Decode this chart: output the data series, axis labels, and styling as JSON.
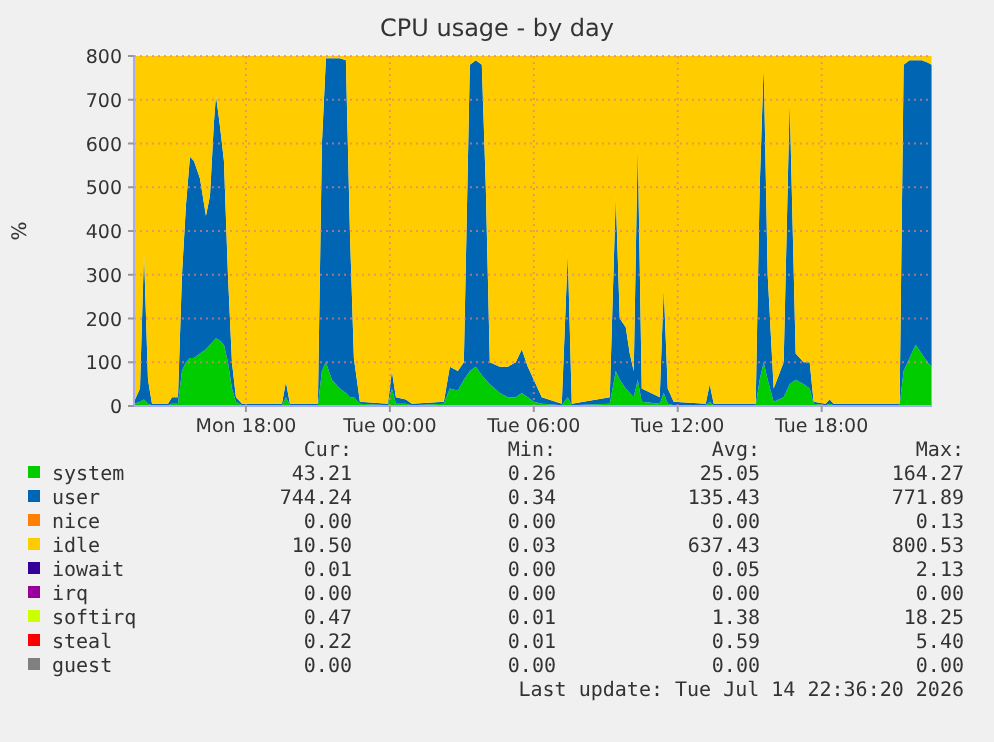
{
  "chart_data": {
    "type": "area",
    "stacked": true,
    "title": "CPU usage - by day",
    "ylabel": "%",
    "grid": true,
    "legend": "bottom",
    "x": [
      "2026-07-13T13:20",
      "2026-07-13T13:35",
      "2026-07-13T13:45",
      "2026-07-13T13:55",
      "2026-07-13T14:05",
      "2026-07-13T14:45",
      "2026-07-13T14:55",
      "2026-07-13T15:10",
      "2026-07-13T15:20",
      "2026-07-13T15:30",
      "2026-07-13T15:40",
      "2026-07-13T15:50",
      "2026-07-13T16:05",
      "2026-07-13T16:20",
      "2026-07-13T16:30",
      "2026-07-13T16:40",
      "2026-07-13T16:45",
      "2026-07-13T16:55",
      "2026-07-13T17:05",
      "2026-07-13T17:15",
      "2026-07-13T17:25",
      "2026-07-13T17:35",
      "2026-07-13T17:50",
      "2026-07-13T19:30",
      "2026-07-13T19:40",
      "2026-07-13T19:50",
      "2026-07-13T21:00",
      "2026-07-13T21:10",
      "2026-07-13T21:20",
      "2026-07-13T21:35",
      "2026-07-13T21:55",
      "2026-07-13T22:10",
      "2026-07-13T22:20",
      "2026-07-13T22:30",
      "2026-07-13T22:45",
      "2026-07-13T23:55",
      "2026-07-14T00:05",
      "2026-07-14T00:15",
      "2026-07-14T00:40",
      "2026-07-14T00:55",
      "2026-07-14T02:15",
      "2026-07-14T02:30",
      "2026-07-14T02:50",
      "2026-07-14T03:05",
      "2026-07-14T03:20",
      "2026-07-14T03:35",
      "2026-07-14T03:50",
      "2026-07-14T04:00",
      "2026-07-14T04:10",
      "2026-07-14T04:35",
      "2026-07-14T04:55",
      "2026-07-14T05:15",
      "2026-07-14T05:30",
      "2026-07-14T05:45",
      "2026-07-14T06:00",
      "2026-07-14T06:20",
      "2026-07-14T07:10",
      "2026-07-14T07:25",
      "2026-07-14T07:35",
      "2026-07-14T09:10",
      "2026-07-14T09:25",
      "2026-07-14T09:35",
      "2026-07-14T09:50",
      "2026-07-14T10:00",
      "2026-07-14T10:10",
      "2026-07-14T10:20",
      "2026-07-14T10:30",
      "2026-07-14T11:15",
      "2026-07-14T11:25",
      "2026-07-14T11:35",
      "2026-07-14T11:50",
      "2026-07-14T13:10",
      "2026-07-14T13:20",
      "2026-07-14T13:30",
      "2026-07-14T15:15",
      "2026-07-14T15:25",
      "2026-07-14T15:35",
      "2026-07-14T15:45",
      "2026-07-14T16:00",
      "2026-07-14T16:25",
      "2026-07-14T16:40",
      "2026-07-14T16:55",
      "2026-07-14T17:15",
      "2026-07-14T17:30",
      "2026-07-14T17:40",
      "2026-07-14T18:10",
      "2026-07-14T18:20",
      "2026-07-14T18:30",
      "2026-07-14T21:15",
      "2026-07-14T21:25",
      "2026-07-14T21:40",
      "2026-07-14T21:55",
      "2026-07-14T22:10",
      "2026-07-14T22:25",
      "2026-07-14T22:35"
    ],
    "xlim": [
      "2026-07-13T13:20",
      "2026-07-14T22:36"
    ],
    "xticks": [
      {
        "value": "2026-07-13T18:00",
        "label": "Mon 18:00"
      },
      {
        "value": "2026-07-14T00:00",
        "label": "Tue 00:00"
      },
      {
        "value": "2026-07-14T06:00",
        "label": "Tue 06:00"
      },
      {
        "value": "2026-07-14T12:00",
        "label": "Tue 12:00"
      },
      {
        "value": "2026-07-14T18:00",
        "label": "Tue 18:00"
      }
    ],
    "ylim": [
      0,
      800
    ],
    "yticks": [
      0,
      100,
      200,
      300,
      400,
      500,
      600,
      700,
      800
    ],
    "series": [
      {
        "name": "system",
        "color": "#00cc00",
        "values": [
          5,
          10,
          15,
          5,
          2,
          2,
          5,
          5,
          80,
          100,
          110,
          110,
          120,
          130,
          140,
          150,
          155,
          150,
          140,
          100,
          40,
          10,
          2,
          2,
          20,
          2,
          2,
          80,
          100,
          60,
          40,
          30,
          20,
          20,
          5,
          2,
          40,
          5,
          5,
          2,
          5,
          40,
          35,
          60,
          80,
          90,
          70,
          60,
          50,
          30,
          20,
          20,
          30,
          20,
          10,
          5,
          2,
          20,
          2,
          5,
          80,
          60,
          40,
          30,
          20,
          60,
          10,
          5,
          30,
          5,
          2,
          2,
          10,
          2,
          2,
          60,
          100,
          60,
          10,
          20,
          50,
          60,
          50,
          40,
          5,
          2,
          5,
          2,
          2,
          80,
          110,
          140,
          120,
          100,
          90
        ]
      },
      {
        "name": "user",
        "color": "#0066b3",
        "values": [
          5,
          30,
          335,
          55,
          3,
          3,
          15,
          15,
          220,
          360,
          460,
          450,
          400,
          305,
          340,
          500,
          555,
          490,
          420,
          200,
          60,
          10,
          3,
          3,
          35,
          3,
          3,
          520,
          695,
          735,
          755,
          760,
          380,
          90,
          5,
          3,
          40,
          15,
          10,
          3,
          5,
          50,
          45,
          40,
          700,
          700,
          710,
          440,
          50,
          60,
          70,
          80,
          100,
          70,
          50,
          15,
          3,
          330,
          3,
          15,
          400,
          140,
          140,
          90,
          60,
          540,
          30,
          15,
          240,
          35,
          8,
          3,
          40,
          3,
          3,
          440,
          680,
          240,
          30,
          80,
          650,
          60,
          50,
          60,
          5,
          3,
          10,
          3,
          3,
          700,
          680,
          650,
          670,
          685,
          690
        ]
      },
      {
        "name": "nice",
        "color": "#ff8000",
        "values": [
          null,
          null,
          null,
          null,
          null,
          null,
          null,
          null,
          null,
          null,
          null,
          null,
          null,
          null,
          null,
          null,
          null,
          null,
          null,
          null,
          null,
          null,
          null,
          null,
          null,
          null,
          null,
          null,
          null,
          null,
          null,
          null,
          null,
          null,
          null,
          null,
          null,
          null,
          null,
          null,
          null,
          null,
          null,
          null,
          null,
          null,
          null,
          null,
          null,
          null,
          null,
          null,
          null,
          null,
          null,
          null,
          null,
          null,
          null,
          null,
          null,
          null,
          null,
          null,
          null,
          null,
          null,
          null,
          null,
          null,
          null,
          null,
          null,
          null,
          null,
          null,
          null,
          null,
          null,
          null,
          null,
          null,
          null,
          null,
          null,
          null,
          null,
          null,
          null,
          null,
          null,
          null,
          null,
          null,
          null
        ]
      },
      {
        "name": "idle",
        "color": "#ffcc00",
        "values": [
          790,
          760,
          450,
          740,
          795,
          795,
          780,
          780,
          500,
          340,
          230,
          240,
          280,
          365,
          320,
          150,
          90,
          160,
          240,
          500,
          700,
          780,
          795,
          795,
          745,
          795,
          795,
          200,
          5,
          5,
          5,
          10,
          400,
          690,
          790,
          795,
          720,
          780,
          785,
          795,
          790,
          710,
          720,
          700,
          20,
          10,
          20,
          300,
          700,
          710,
          710,
          700,
          670,
          710,
          740,
          780,
          795,
          450,
          795,
          780,
          320,
          600,
          620,
          680,
          720,
          200,
          760,
          780,
          530,
          760,
          790,
          795,
          750,
          795,
          795,
          300,
          20,
          500,
          760,
          700,
          100,
          680,
          700,
          700,
          790,
          795,
          785,
          795,
          795,
          20,
          10,
          10,
          10,
          15,
          20
        ]
      },
      {
        "name": "iowait",
        "color": "#330099",
        "values": [
          null,
          null,
          null,
          null,
          null,
          null,
          null,
          null,
          null,
          null,
          null,
          null,
          null,
          null,
          null,
          null,
          null,
          null,
          null,
          null,
          null,
          null,
          null,
          null,
          null,
          null,
          null,
          null,
          null,
          null,
          null,
          null,
          null,
          null,
          null,
          null,
          null,
          null,
          null,
          null,
          null,
          null,
          null,
          null,
          null,
          null,
          null,
          null,
          null,
          null,
          null,
          null,
          null,
          null,
          null,
          null,
          null,
          null,
          null,
          null,
          null,
          null,
          null,
          null,
          null,
          null,
          null,
          null,
          null,
          null,
          null,
          null,
          null,
          null,
          null,
          null,
          null,
          null,
          null,
          null,
          null,
          null,
          null,
          null,
          null,
          null,
          null,
          null,
          null,
          null,
          null,
          null,
          null,
          null,
          null
        ]
      },
      {
        "name": "irq",
        "color": "#990099",
        "values": [
          null,
          null,
          null,
          null,
          null,
          null,
          null,
          null,
          null,
          null,
          null,
          null,
          null,
          null,
          null,
          null,
          null,
          null,
          null,
          null,
          null,
          null,
          null,
          null,
          null,
          null,
          null,
          null,
          null,
          null,
          null,
          null,
          null,
          null,
          null,
          null,
          null,
          null,
          null,
          null,
          null,
          null,
          null,
          null,
          null,
          null,
          null,
          null,
          null,
          null,
          null,
          null,
          null,
          null,
          null,
          null,
          null,
          null,
          null,
          null,
          null,
          null,
          null,
          null,
          null,
          null,
          null,
          null,
          null,
          null,
          null,
          null,
          null,
          null,
          null,
          null,
          null,
          null,
          null,
          null,
          null,
          null,
          null,
          null,
          null,
          null,
          null,
          null,
          null,
          null,
          null,
          null,
          null,
          null,
          null
        ]
      },
      {
        "name": "softirq",
        "color": "#ccff00",
        "values": [
          null,
          null,
          null,
          null,
          null,
          null,
          null,
          null,
          null,
          null,
          null,
          null,
          null,
          null,
          null,
          null,
          null,
          null,
          null,
          null,
          null,
          null,
          null,
          null,
          null,
          null,
          null,
          null,
          null,
          null,
          null,
          null,
          null,
          null,
          null,
          null,
          null,
          null,
          null,
          null,
          null,
          null,
          null,
          null,
          null,
          null,
          null,
          null,
          null,
          null,
          null,
          null,
          null,
          null,
          null,
          null,
          null,
          null,
          null,
          null,
          null,
          null,
          null,
          null,
          null,
          null,
          null,
          null,
          null,
          null,
          null,
          null,
          null,
          null,
          null,
          null,
          null,
          null,
          null,
          null,
          null,
          null,
          null,
          null,
          null,
          null,
          null,
          null,
          null,
          null,
          null,
          null,
          null,
          null,
          null
        ]
      },
      {
        "name": "steal",
        "color": "#ff0000",
        "values": [
          null,
          null,
          null,
          null,
          null,
          null,
          null,
          null,
          null,
          null,
          null,
          null,
          null,
          null,
          null,
          null,
          null,
          null,
          null,
          null,
          null,
          null,
          null,
          null,
          null,
          null,
          null,
          null,
          null,
          null,
          null,
          null,
          null,
          null,
          null,
          null,
          null,
          null,
          null,
          null,
          null,
          null,
          null,
          null,
          null,
          null,
          null,
          null,
          null,
          null,
          null,
          null,
          null,
          null,
          null,
          null,
          null,
          null,
          null,
          null,
          null,
          null,
          null,
          null,
          null,
          null,
          null,
          null,
          null,
          null,
          null,
          null,
          null,
          null,
          null,
          null,
          null,
          null,
          null,
          null,
          null,
          null,
          null,
          null,
          null,
          null,
          null,
          null,
          null,
          null,
          null,
          null,
          null,
          null,
          null
        ]
      },
      {
        "name": "guest",
        "color": "#808080",
        "values": [
          null,
          null,
          null,
          null,
          null,
          null,
          null,
          null,
          null,
          null,
          null,
          null,
          null,
          null,
          null,
          null,
          null,
          null,
          null,
          null,
          null,
          null,
          null,
          null,
          null,
          null,
          null,
          null,
          null,
          null,
          null,
          null,
          null,
          null,
          null,
          null,
          null,
          null,
          null,
          null,
          null,
          null,
          null,
          null,
          null,
          null,
          null,
          null,
          null,
          null,
          null,
          null,
          null,
          null,
          null,
          null,
          null,
          null,
          null,
          null,
          null,
          null,
          null,
          null,
          null,
          null,
          null,
          null,
          null,
          null,
          null,
          null,
          null,
          null,
          null,
          null,
          null,
          null,
          null,
          null,
          null,
          null,
          null,
          null,
          null,
          null,
          null,
          null,
          null,
          null,
          null,
          null,
          null,
          null,
          null
        ]
      }
    ],
    "annotations": [
      "Cur:",
      "Min:",
      "Avg:",
      "Max:",
      "43.21",
      "0.26",
      "25.05",
      "164.27",
      "744.24",
      "0.34",
      "135.43",
      "771.89",
      "0.00",
      "0.00",
      "0.00",
      "0.13",
      "10.50",
      "0.03",
      "637.43",
      "800.53",
      "0.01",
      "0.00",
      "0.05",
      "2.13",
      "0.00",
      "0.00",
      "0.00",
      "0.00",
      "0.47",
      "0.01",
      "1.38",
      "18.25",
      "0.22",
      "0.01",
      "0.59",
      "5.40",
      "0.00",
      "0.00",
      "0.00",
      "0.00",
      "Last update: Tue Jul 14 22:36:20 2026"
    ]
  }
}
